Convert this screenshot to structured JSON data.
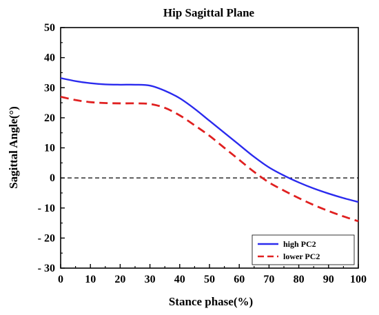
{
  "chart_data": {
    "type": "line",
    "title": "Hip Sagittal Plane",
    "xlabel": "Stance phase(%)",
    "ylabel": "Sagittal Angle(°)",
    "xlim": [
      0,
      100
    ],
    "ylim": [
      -30,
      50
    ],
    "x_ticks": [
      0,
      10,
      20,
      30,
      40,
      50,
      60,
      70,
      80,
      90,
      100
    ],
    "y_ticks": [
      -30,
      -20,
      -10,
      0,
      10,
      20,
      30,
      40,
      50
    ],
    "x_tick_labels": [
      "0",
      "10",
      "20",
      "30",
      "40",
      "50",
      "60",
      "70",
      "80",
      "90",
      "100"
    ],
    "y_tick_labels": [
      "- 30",
      "- 20",
      "- 10",
      "0",
      "10",
      "20",
      "30",
      "40",
      "50"
    ],
    "grid": false,
    "reference_line": {
      "y": 0,
      "style": "dashed",
      "color": "#000000"
    },
    "legend": {
      "placement": "bottom-right"
    },
    "series": [
      {
        "name": "high PC2",
        "color": "#2a2aee",
        "style": "solid",
        "x": [
          0,
          5,
          10,
          15,
          20,
          25,
          30,
          35,
          40,
          45,
          50,
          55,
          60,
          65,
          70,
          75,
          80,
          85,
          90,
          95,
          100
        ],
        "values": [
          33.2,
          32.2,
          31.5,
          31.1,
          31.0,
          31.0,
          30.7,
          29.0,
          26.5,
          23.0,
          19.0,
          15.0,
          11.0,
          7.0,
          3.5,
          0.8,
          -1.5,
          -3.5,
          -5.2,
          -6.7,
          -8.0
        ]
      },
      {
        "name": "lower PC2",
        "color": "#e02020",
        "style": "dashed",
        "x": [
          0,
          5,
          10,
          15,
          20,
          25,
          30,
          35,
          40,
          45,
          50,
          55,
          60,
          65,
          70,
          75,
          80,
          85,
          90,
          95,
          100
        ],
        "values": [
          27.0,
          25.9,
          25.2,
          24.9,
          24.8,
          24.8,
          24.6,
          23.3,
          20.8,
          17.5,
          14.0,
          10.0,
          6.0,
          2.0,
          -1.5,
          -4.2,
          -6.7,
          -9.0,
          -11.0,
          -12.8,
          -14.4
        ]
      }
    ]
  }
}
